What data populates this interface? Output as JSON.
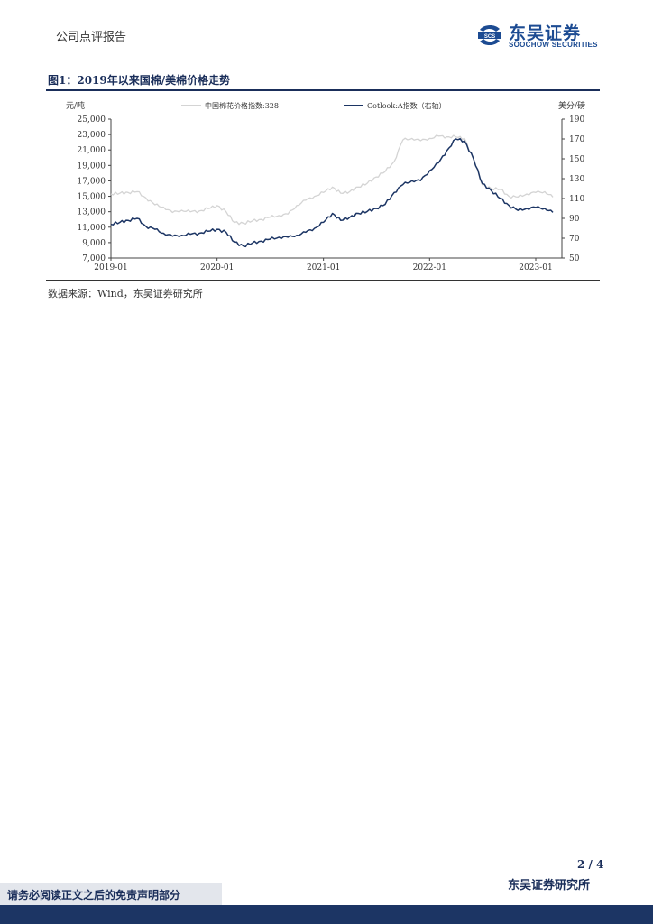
{
  "header": {
    "report_type": "公司点评报告"
  },
  "logo": {
    "cn": "东吴证券",
    "en": "SOOCHOW SECURITIES",
    "mark_text": "SCS",
    "color": "#1c4b92"
  },
  "figure": {
    "title": "图1：2019年以来国棉/美棉价格走势",
    "source": "数据来源：Wind，东吴证券研究所"
  },
  "chart_data": {
    "type": "line",
    "left_unit": "元/吨",
    "right_unit": "美分/磅",
    "left_axis": {
      "min": 7000,
      "max": 25000,
      "ticks": [
        "25,000",
        "23,000",
        "21,000",
        "19,000",
        "17,000",
        "15,000",
        "13,000",
        "11,000",
        "9,000",
        "7,000"
      ]
    },
    "right_axis": {
      "min": 50,
      "max": 190,
      "ticks": [
        "190",
        "170",
        "150",
        "130",
        "110",
        "90",
        "70",
        "50"
      ]
    },
    "x_ticks": [
      "2019-01",
      "2020-01",
      "2021-01",
      "2022-01",
      "2023-01"
    ],
    "series": [
      {
        "name": "中国棉花价格指数:328",
        "axis": "left",
        "color": "#d4d4d4",
        "points": [
          [
            "2019-01",
            15300
          ],
          [
            "2019-02",
            15400
          ],
          [
            "2019-03",
            15500
          ],
          [
            "2019-04",
            15600
          ],
          [
            "2019-05",
            14800
          ],
          [
            "2019-06",
            13900
          ],
          [
            "2019-07",
            13600
          ],
          [
            "2019-08",
            12900
          ],
          [
            "2019-09",
            13200
          ],
          [
            "2019-10",
            13000
          ],
          [
            "2019-11",
            13100
          ],
          [
            "2019-12",
            13400
          ],
          [
            "2020-01",
            13800
          ],
          [
            "2020-02",
            13000
          ],
          [
            "2020-03",
            11600
          ],
          [
            "2020-04",
            11500
          ],
          [
            "2020-05",
            11800
          ],
          [
            "2020-06",
            12000
          ],
          [
            "2020-07",
            12300
          ],
          [
            "2020-08",
            12500
          ],
          [
            "2020-09",
            12700
          ],
          [
            "2020-10",
            13800
          ],
          [
            "2020-11",
            14500
          ],
          [
            "2020-12",
            15000
          ],
          [
            "2021-01",
            15500
          ],
          [
            "2021-02",
            16200
          ],
          [
            "2021-03",
            15400
          ],
          [
            "2021-04",
            15600
          ],
          [
            "2021-05",
            16200
          ],
          [
            "2021-06",
            16700
          ],
          [
            "2021-07",
            17500
          ],
          [
            "2021-08",
            18200
          ],
          [
            "2021-09",
            19500
          ],
          [
            "2021-10",
            22300
          ],
          [
            "2021-11",
            22500
          ],
          [
            "2021-12",
            22200
          ],
          [
            "2022-01",
            22500
          ],
          [
            "2022-02",
            22800
          ],
          [
            "2022-03",
            22700
          ],
          [
            "2022-04",
            22700
          ],
          [
            "2022-05",
            22500
          ],
          [
            "2022-06",
            19800
          ],
          [
            "2022-07",
            16500
          ],
          [
            "2022-08",
            16000
          ],
          [
            "2022-09",
            15900
          ],
          [
            "2022-10",
            15000
          ],
          [
            "2022-11",
            14900
          ],
          [
            "2022-12",
            15300
          ],
          [
            "2023-01",
            15500
          ],
          [
            "2023-02",
            15600
          ],
          [
            "2023-03",
            14900
          ]
        ]
      },
      {
        "name": "Cotlook:A指数（右轴）",
        "axis": "right",
        "color": "#1c3564",
        "points": [
          [
            "2019-01",
            84
          ],
          [
            "2019-02",
            86
          ],
          [
            "2019-03",
            88
          ],
          [
            "2019-04",
            90
          ],
          [
            "2019-05",
            82
          ],
          [
            "2019-06",
            79
          ],
          [
            "2019-07",
            75
          ],
          [
            "2019-08",
            72
          ],
          [
            "2019-09",
            73
          ],
          [
            "2019-10",
            74
          ],
          [
            "2019-11",
            75
          ],
          [
            "2019-12",
            77
          ],
          [
            "2020-01",
            79
          ],
          [
            "2020-02",
            76
          ],
          [
            "2020-03",
            66
          ],
          [
            "2020-04",
            62
          ],
          [
            "2020-05",
            65
          ],
          [
            "2020-06",
            67
          ],
          [
            "2020-07",
            69
          ],
          [
            "2020-08",
            71
          ],
          [
            "2020-09",
            71
          ],
          [
            "2020-10",
            73
          ],
          [
            "2020-11",
            76
          ],
          [
            "2020-12",
            80
          ],
          [
            "2021-01",
            86
          ],
          [
            "2021-02",
            95
          ],
          [
            "2021-03",
            88
          ],
          [
            "2021-04",
            91
          ],
          [
            "2021-05",
            95
          ],
          [
            "2021-06",
            97
          ],
          [
            "2021-07",
            100
          ],
          [
            "2021-08",
            104
          ],
          [
            "2021-09",
            116
          ],
          [
            "2021-10",
            124
          ],
          [
            "2021-11",
            128
          ],
          [
            "2021-12",
            128
          ],
          [
            "2022-01",
            138
          ],
          [
            "2022-02",
            146
          ],
          [
            "2022-03",
            158
          ],
          [
            "2022-04",
            170
          ],
          [
            "2022-05",
            168
          ],
          [
            "2022-06",
            150
          ],
          [
            "2022-07",
            125
          ],
          [
            "2022-08",
            118
          ],
          [
            "2022-09",
            110
          ],
          [
            "2022-10",
            103
          ],
          [
            "2022-11",
            98
          ],
          [
            "2022-12",
            100
          ],
          [
            "2023-01",
            101
          ],
          [
            "2023-02",
            100
          ],
          [
            "2023-03",
            96
          ]
        ]
      }
    ]
  },
  "footer": {
    "page": "2 / 4",
    "org": "东吴证券研究所",
    "disclaimer": "请务必阅读正文之后的免责声明部分"
  }
}
